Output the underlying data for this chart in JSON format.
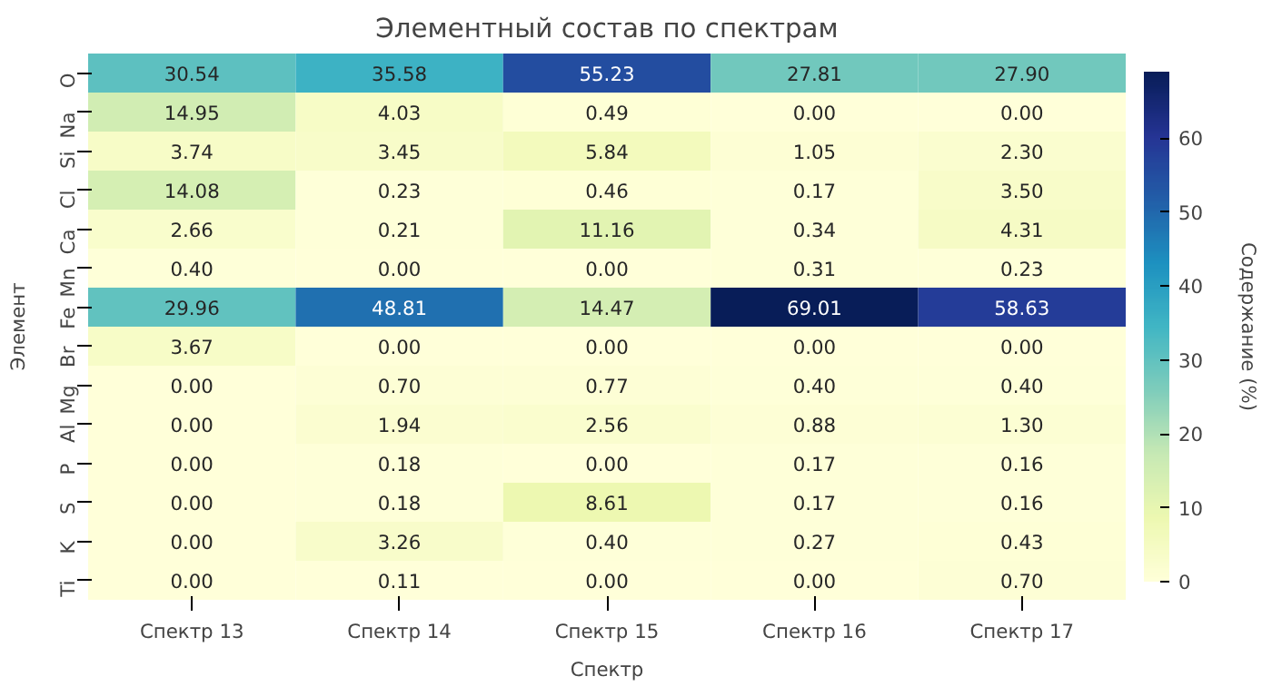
{
  "chart_data": {
    "type": "heatmap",
    "title": "Элементный состав по спектрам",
    "xlabel": "Спектр",
    "ylabel": "Элемент",
    "clabel": "Содержание (%)",
    "categories": [
      "Спектр 13",
      "Спектр 14",
      "Спектр 15",
      "Спектр 16",
      "Спектр 17"
    ],
    "y_categories": [
      "O",
      "Na",
      "Si",
      "Cl",
      "Ca",
      "Mn",
      "Fe",
      "Br",
      "Mg",
      "Al",
      "P",
      "S",
      "K",
      "Ti"
    ],
    "cells": [
      [
        30.54,
        35.58,
        55.23,
        27.81,
        27.9
      ],
      [
        14.95,
        4.03,
        0.49,
        0.0,
        0.0
      ],
      [
        3.74,
        3.45,
        5.84,
        1.05,
        2.3
      ],
      [
        14.08,
        0.23,
        0.46,
        0.17,
        3.5
      ],
      [
        2.66,
        0.21,
        11.16,
        0.34,
        4.31
      ],
      [
        0.4,
        0.0,
        0.0,
        0.31,
        0.23
      ],
      [
        29.96,
        48.81,
        14.47,
        69.01,
        58.63
      ],
      [
        3.67,
        0.0,
        0.0,
        0.0,
        0.0
      ],
      [
        0.0,
        0.7,
        0.77,
        0.4,
        0.4
      ],
      [
        0.0,
        1.94,
        2.56,
        0.88,
        1.3
      ],
      [
        0.0,
        0.18,
        0.0,
        0.17,
        0.16
      ],
      [
        0.0,
        0.18,
        8.61,
        0.17,
        0.16
      ],
      [
        0.0,
        3.26,
        0.4,
        0.27,
        0.43
      ],
      [
        0.0,
        0.11,
        0.0,
        0.0,
        0.7
      ]
    ],
    "cell_labels": [
      [
        "30.54",
        "35.58",
        "55.23",
        "27.81",
        "27.90"
      ],
      [
        "14.95",
        "4.03",
        "0.49",
        "0.00",
        "0.00"
      ],
      [
        "3.74",
        "3.45",
        "5.84",
        "1.05",
        "2.30"
      ],
      [
        "14.08",
        "0.23",
        "0.46",
        "0.17",
        "3.50"
      ],
      [
        "2.66",
        "0.21",
        "11.16",
        "0.34",
        "4.31"
      ],
      [
        "0.40",
        "0.00",
        "0.00",
        "0.31",
        "0.23"
      ],
      [
        "29.96",
        "48.81",
        "14.47",
        "69.01",
        "58.63"
      ],
      [
        "3.67",
        "0.00",
        "0.00",
        "0.00",
        "0.00"
      ],
      [
        "0.00",
        "0.70",
        "0.77",
        "0.40",
        "0.40"
      ],
      [
        "0.00",
        "1.94",
        "2.56",
        "0.88",
        "1.30"
      ],
      [
        "0.00",
        "0.18",
        "0.00",
        "0.17",
        "0.16"
      ],
      [
        "0.00",
        "0.18",
        "8.61",
        "0.17",
        "0.16"
      ],
      [
        "0.00",
        "3.26",
        "0.40",
        "0.27",
        "0.43"
      ],
      [
        "0.00",
        "0.11",
        "0.00",
        "0.00",
        "0.70"
      ]
    ],
    "clim": [
      0,
      69.01
    ],
    "cticks": [
      0,
      10,
      20,
      30,
      40,
      50,
      60
    ]
  }
}
